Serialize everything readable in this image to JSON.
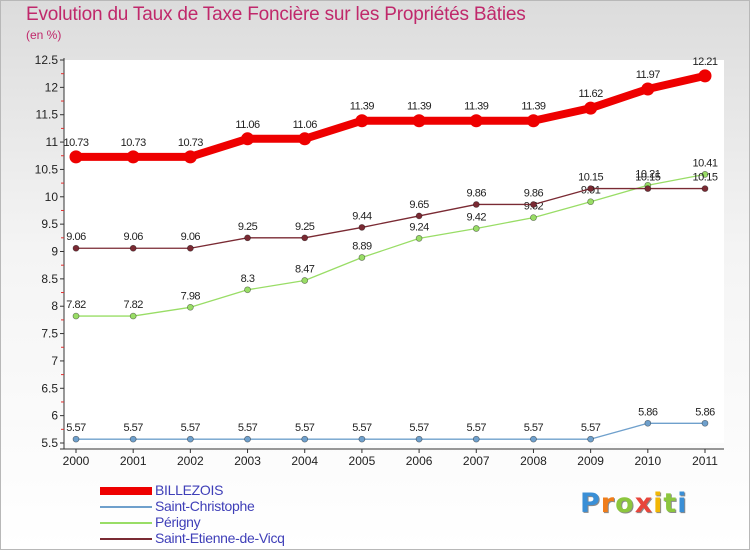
{
  "chart_data": {
    "type": "line",
    "title": "Evolution du Taux de Taxe Foncière sur les Propriétés Bâties",
    "subtitle": "(en %)",
    "x": [
      "2000",
      "2001",
      "2002",
      "2003",
      "2004",
      "2005",
      "2006",
      "2007",
      "2008",
      "2009",
      "2010",
      "2011"
    ],
    "ylim": [
      5.5,
      12.5
    ],
    "yticks": [
      "5.5",
      "6",
      "6.5",
      "7",
      "7.5",
      "8",
      "8.5",
      "9",
      "9.5",
      "10",
      "10.5",
      "11",
      "11.5",
      "12",
      "12.5"
    ],
    "grid": false,
    "legend_position": "bottom-left",
    "series": [
      {
        "name": "BILLEZOIS",
        "color": "#ee0000",
        "values": [
          10.73,
          10.73,
          10.73,
          11.06,
          11.06,
          11.39,
          11.39,
          11.39,
          11.39,
          11.62,
          11.97,
          12.21
        ],
        "labels": [
          "10.73",
          "10.73",
          "10.73",
          "11.06",
          "11.06",
          "11.39",
          "11.39",
          "11.39",
          "11.39",
          "11.62",
          "11.97",
          "12.21"
        ]
      },
      {
        "name": "Saint-Christophe",
        "color": "#6fa0cc",
        "values": [
          5.57,
          5.57,
          5.57,
          5.57,
          5.57,
          5.57,
          5.57,
          5.57,
          5.57,
          5.57,
          5.86,
          5.86
        ],
        "labels": [
          "5.57",
          "5.57",
          "5.57",
          "5.57",
          "5.57",
          "5.57",
          "5.57",
          "5.57",
          "5.57",
          "5.57",
          "5.86",
          "5.86"
        ]
      },
      {
        "name": "Périgny",
        "color": "#99dd66",
        "values": [
          7.82,
          7.82,
          7.98,
          8.3,
          8.47,
          8.89,
          9.24,
          9.42,
          9.62,
          9.91,
          10.21,
          10.41
        ],
        "labels": [
          "7.82",
          "7.82",
          "7.98",
          "8.3",
          "8.47",
          "8.89",
          "9.24",
          "9.42",
          "9.62",
          "9.91",
          "10.21",
          "10.41"
        ]
      },
      {
        "name": "Saint-Etienne-de-Vicq",
        "color": "#7a2a33",
        "values": [
          9.06,
          9.06,
          9.06,
          9.25,
          9.25,
          9.44,
          9.65,
          9.86,
          9.86,
          10.15,
          10.15,
          10.15
        ],
        "labels": [
          "9.06",
          "9.06",
          "9.06",
          "9.25",
          "9.25",
          "9.44",
          "9.65",
          "9.86",
          "9.86",
          "10.15",
          "10.15",
          "10.15"
        ]
      }
    ]
  },
  "brand": {
    "letters": [
      "P",
      "r",
      "o",
      "x",
      "i",
      "t",
      "i"
    ],
    "colors": [
      "#3a8fd6",
      "#f07d1a",
      "#8cc63e",
      "#e8463c",
      "#f2b705",
      "#8cc63e",
      "#3a8fd6"
    ]
  }
}
